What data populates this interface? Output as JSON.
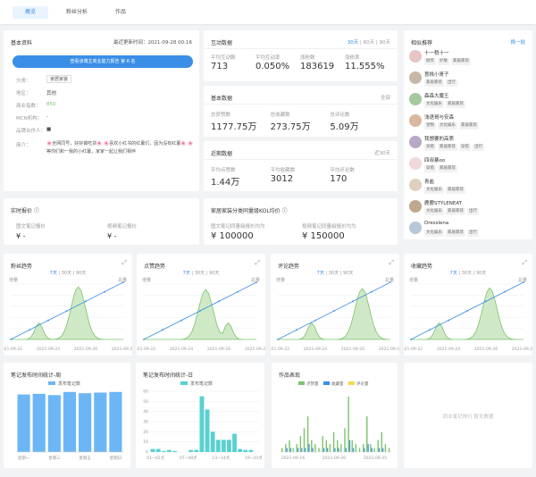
{
  "tabs": [
    "概览",
    "粉丝分析",
    "作品"
  ],
  "basic": {
    "title": "基本资料",
    "updated": "最近更新时间：2021-09-28 00:16",
    "button": "查看该博主商业能力报告 第 6 名",
    "fields": [
      {
        "label": "分类：",
        "value": "家居家装",
        "tag": true
      },
      {
        "label": "地区：",
        "value": "其他"
      },
      {
        "label": "商业指数：",
        "value": "850",
        "accent": true
      },
      {
        "label": "MCN机构：",
        "value": "-"
      },
      {
        "label": "品牌合作人：",
        "value": "■"
      }
    ],
    "intro_label": "简介：",
    "intro": "🌸全网同号，好好做吃货🌸 🌸喜欢小红书的红薯们，因为没有红薯🌸 🌸等你们和一我的小红薯，家家一起让我们相伴"
  },
  "interact": {
    "title": "互动数据",
    "periods": [
      "30天",
      "60天",
      "90天"
    ],
    "stats": [
      {
        "label": "平均互动数",
        "value": "713"
      },
      {
        "label": "平均互动率",
        "value": "0.050%"
      },
      {
        "label": "涨粉数",
        "value": "183619"
      },
      {
        "label": "涨粉率",
        "value": "11.555%"
      }
    ]
  },
  "base": {
    "title": "基本数据",
    "extra": "全部",
    "stats": [
      {
        "label": "总获赞数",
        "value": "1177.75万"
      },
      {
        "label": "总收藏数",
        "value": "273.75万"
      },
      {
        "label": "总评论数",
        "value": "5.09万"
      }
    ]
  },
  "recent": {
    "title": "近期数据",
    "extra": "近30天",
    "stats": [
      {
        "label": "平均点赞数",
        "value": "1.44万"
      },
      {
        "label": "平均收藏数",
        "value": "3012"
      },
      {
        "label": "平均评论数",
        "value": "170"
      }
    ]
  },
  "related": {
    "title": "相似推荐",
    "extra": "换一批",
    "items": [
      {
        "name": "十一稍十一",
        "tags": [
          "搞笑",
          "护肤",
          "家居家装"
        ]
      },
      {
        "name": "意桃小哥子",
        "tags": [
          "家居家装",
          "出行"
        ]
      },
      {
        "name": "森森大魔王",
        "tags": [
          "文化娱乐",
          "家居家装"
        ]
      },
      {
        "name": "浅语哥与安森",
        "tags": [
          "宠物",
          "文化娱乐",
          "家居家装"
        ]
      },
      {
        "name": "我想要的高质",
        "tags": [
          "穿搭",
          "家居家装",
          "穿搭",
          "出行"
        ]
      },
      {
        "name": "四叔暴oo",
        "tags": [
          "穿搭",
          "家居家装"
        ]
      },
      {
        "name": "青盐",
        "tags": [
          "文化娱乐",
          "家居家装"
        ]
      },
      {
        "name": "鹿鹿STYLENEAT",
        "tags": [
          "文化娱乐",
          "家居家装",
          "出行"
        ]
      },
      {
        "name": "Dresslena",
        "tags": [
          "文化娱乐",
          "家居家装",
          "出行"
        ]
      }
    ]
  },
  "quote": {
    "title": "实时报价",
    "items": [
      {
        "label": "图文笔记报价",
        "value": "¥ -"
      },
      {
        "label": "视频笔记报价",
        "value": "¥ -"
      }
    ]
  },
  "kol": {
    "title": "家居家装分类同量级KOL均价",
    "items": [
      {
        "label": "图文笔记同量级报价均为",
        "value": "¥ 100000"
      },
      {
        "label": "视频笔记同量级报价均为",
        "value": "¥ 150000"
      }
    ]
  },
  "trend_periods": [
    "7天",
    "30天",
    "90天"
  ],
  "trend_left_label": "增量",
  "trend_right_label": "总量",
  "trends": [
    {
      "title": "粉丝趋势",
      "dates": [
        "2021-09-22",
        "2021-09-24",
        "2021-09-26",
        "2021-09-28"
      ]
    },
    {
      "title": "点赞趋势",
      "dates": [
        "2021-09-22",
        "2021-09-24",
        "2021-09-26",
        "2021-09-28"
      ]
    },
    {
      "title": "评论趋势",
      "dates": [
        "2021-09-22",
        "2021-09-24",
        "2021-09-26",
        "2021-09-28"
      ]
    },
    {
      "title": "收藏趋势",
      "dates": [
        "2021-09-22",
        "2021-09-24",
        "2021-09-26",
        "2021-09-28"
      ]
    }
  ],
  "colors": {
    "blue": "#3a8ee6",
    "green": "#7cc36a",
    "orange": "#e6a23c",
    "teal": "#5ad0d0",
    "yellow": "#f5d74a",
    "sky": "#6cb6f5"
  },
  "chart_data": [
    {
      "type": "bar",
      "title": "笔记发布时间统计-周",
      "series": [
        {
          "name": "发布笔记数",
          "values": [
            92,
            93,
            91,
            96,
            94,
            95,
            96
          ]
        }
      ],
      "categories": [
        "星期一",
        "星期二",
        "星期三",
        "星期四",
        "星期五",
        "星期六",
        "星期日"
      ],
      "tick_labels": [
        "星期一",
        "星期三",
        "星期五",
        "星期日"
      ]
    },
    {
      "type": "bar",
      "title": "笔记发布时间统计-日",
      "series": [
        {
          "name": "发布笔记数",
          "values": [
            3,
            3,
            1,
            2,
            1,
            0,
            0,
            2,
            2,
            55,
            42,
            20,
            12,
            12,
            12,
            18,
            3,
            2,
            2,
            0
          ]
        }
      ],
      "tick_labels": [
        "01~02点",
        "07~08点",
        "13~14点",
        "19~20点"
      ],
      "ylim": [
        0,
        60
      ],
      "yticks": [
        0,
        10,
        20,
        30,
        40,
        50,
        60
      ]
    },
    {
      "type": "bar",
      "title": "作品表现",
      "series": [
        {
          "name": "点赞量",
          "values": [
            1,
            2,
            3,
            1,
            2,
            4,
            6,
            9,
            3,
            2,
            1,
            4,
            3,
            2,
            5,
            3,
            2,
            6,
            14,
            3,
            2,
            1,
            2,
            9,
            2,
            1,
            3,
            5,
            2,
            1
          ]
        },
        {
          "name": "收藏量",
          "values": [
            0,
            1,
            1,
            0,
            1,
            1,
            1,
            2,
            1,
            0,
            0,
            1,
            1,
            0,
            1,
            1,
            0,
            1,
            3,
            1,
            0,
            0,
            1,
            2,
            1,
            0,
            1,
            1,
            0,
            0
          ]
        },
        {
          "name": "评论量",
          "values": [
            0,
            0,
            0,
            0,
            0,
            0,
            0,
            0,
            0,
            0,
            0,
            0,
            0,
            0,
            0,
            0,
            0,
            0,
            0,
            0,
            0,
            0,
            0,
            0,
            0,
            0,
            0,
            0,
            0,
            0
          ]
        }
      ],
      "tick_labels": [
        "2021-09-16",
        "2021-09-20",
        "2021-09-25"
      ]
    }
  ],
  "empty": {
    "text": "同业笔记排行 暂无数据"
  }
}
